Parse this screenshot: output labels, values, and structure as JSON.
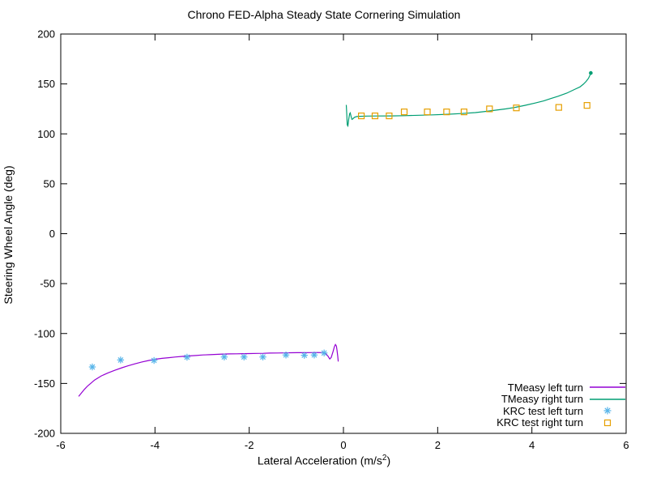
{
  "title": "Chrono FED-Alpha Steady State Cornering Simulation",
  "chart_data": {
    "type": "line",
    "title": "Chrono FED-Alpha Steady State Cornering Simulation",
    "xlabel": {
      "prefix": "Lateral Acceleration (m/s",
      "sup": "2",
      "suffix": ")"
    },
    "ylabel": "Steering Wheel Angle (deg)",
    "xlim": [
      -6,
      6
    ],
    "ylim": [
      -200,
      200
    ],
    "x_ticks": [
      "-6",
      "-4",
      "-2",
      "0",
      "2",
      "4",
      "6"
    ],
    "y_ticks": [
      "-200",
      "-150",
      "-100",
      "-50",
      "0",
      "50",
      "100",
      "150",
      "200"
    ],
    "grid": false,
    "legend_position": "bottom-right-inside",
    "border_color": "#000000",
    "series": [
      {
        "name": "TMeasy left turn",
        "type": "line",
        "color": "#9400d3",
        "points": [
          [
            -5.62,
            -163
          ],
          [
            -5.5,
            -156
          ],
          [
            -5.43,
            -152.5
          ],
          [
            -5.28,
            -146.5
          ],
          [
            -5.14,
            -142.5
          ],
          [
            -5.0,
            -139.5
          ],
          [
            -4.85,
            -136.8
          ],
          [
            -4.7,
            -134.3
          ],
          [
            -4.57,
            -132.3
          ],
          [
            -4.42,
            -130.3
          ],
          [
            -4.28,
            -128.5
          ],
          [
            -4.13,
            -127.0
          ],
          [
            -3.99,
            -125.8
          ],
          [
            -3.85,
            -124.9
          ],
          [
            -3.71,
            -124.2
          ],
          [
            -3.56,
            -123.5
          ],
          [
            -3.42,
            -122.9
          ],
          [
            -3.27,
            -122.4
          ],
          [
            -3.13,
            -122.0
          ],
          [
            -2.98,
            -121.5
          ],
          [
            -2.84,
            -121.2
          ],
          [
            -2.7,
            -120.9
          ],
          [
            -2.56,
            -120.6
          ],
          [
            -2.41,
            -120.4
          ],
          [
            -2.27,
            -120.3
          ],
          [
            -2.13,
            -120.2
          ],
          [
            -1.99,
            -120.1
          ],
          [
            -1.84,
            -119.9
          ],
          [
            -1.7,
            -119.8
          ],
          [
            -1.56,
            -119.6
          ],
          [
            -1.41,
            -119.5
          ],
          [
            -1.27,
            -119.4
          ],
          [
            -1.13,
            -119.3
          ],
          [
            -0.98,
            -119.2
          ],
          [
            -0.84,
            -119.2
          ],
          [
            -0.7,
            -119.1
          ],
          [
            -0.55,
            -119.0
          ],
          [
            -0.45,
            -119.2
          ],
          [
            -0.38,
            -120.0
          ],
          [
            -0.33,
            -122.5
          ],
          [
            -0.29,
            -125.5
          ],
          [
            -0.26,
            -124.0
          ],
          [
            -0.22,
            -118.0
          ],
          [
            -0.19,
            -113.0
          ],
          [
            -0.17,
            -111.0
          ],
          [
            -0.15,
            -112.5
          ],
          [
            -0.135,
            -117.0
          ],
          [
            -0.12,
            -123.0
          ],
          [
            -0.11,
            -128.0
          ]
        ]
      },
      {
        "name": "TMeasy right turn",
        "type": "line",
        "color": "#009e73",
        "endpoint_dot": true,
        "points": [
          [
            0.06,
            129
          ],
          [
            0.07,
            120
          ],
          [
            0.08,
            109
          ],
          [
            0.095,
            108
          ],
          [
            0.11,
            114
          ],
          [
            0.13,
            120
          ],
          [
            0.145,
            121
          ],
          [
            0.16,
            118
          ],
          [
            0.18,
            114.5
          ],
          [
            0.2,
            115
          ],
          [
            0.23,
            116.5
          ],
          [
            0.28,
            117.3
          ],
          [
            0.35,
            117.6
          ],
          [
            0.5,
            117.8
          ],
          [
            0.7,
            117.9
          ],
          [
            1.0,
            118.0
          ],
          [
            1.3,
            118.2
          ],
          [
            1.6,
            118.6
          ],
          [
            1.9,
            119.0
          ],
          [
            2.2,
            119.6
          ],
          [
            2.5,
            120.3
          ],
          [
            2.8,
            121.3
          ],
          [
            3.03,
            122.5
          ],
          [
            3.25,
            123.8
          ],
          [
            3.45,
            125.0
          ],
          [
            3.65,
            126.6
          ],
          [
            3.85,
            128.5
          ],
          [
            4.06,
            130.8
          ],
          [
            4.25,
            133.0
          ],
          [
            4.4,
            135.3
          ],
          [
            4.55,
            137.6
          ],
          [
            4.74,
            140.8
          ],
          [
            4.92,
            144.8
          ],
          [
            5.02,
            147.0
          ],
          [
            5.09,
            149.7
          ],
          [
            5.15,
            152.5
          ],
          [
            5.2,
            155.6
          ],
          [
            5.23,
            158.5
          ],
          [
            5.25,
            161.0
          ]
        ]
      },
      {
        "name": "KRC test left turn",
        "type": "scatter",
        "marker": "asterisk",
        "color": "#56b4e9",
        "points": [
          [
            -5.33,
            -133.5
          ],
          [
            -4.73,
            -126.5
          ],
          [
            -4.02,
            -127.0
          ],
          [
            -3.32,
            -123.7
          ],
          [
            -2.53,
            -123.5
          ],
          [
            -2.11,
            -123.5
          ],
          [
            -1.71,
            -123.5
          ],
          [
            -1.22,
            -121.5
          ],
          [
            -0.83,
            -121.8
          ],
          [
            -0.62,
            -121.5
          ],
          [
            -0.41,
            -119.5
          ]
        ]
      },
      {
        "name": "KRC test right turn",
        "type": "scatter",
        "marker": "square",
        "color": "#e69f00",
        "points": [
          [
            0.38,
            118.0
          ],
          [
            0.67,
            118.0
          ],
          [
            0.97,
            118.0
          ],
          [
            1.29,
            122.0
          ],
          [
            1.78,
            122.0
          ],
          [
            2.19,
            122.0
          ],
          [
            2.56,
            122.0
          ],
          [
            3.1,
            125.0
          ],
          [
            3.67,
            126.0
          ],
          [
            4.57,
            126.5
          ],
          [
            5.17,
            128.5
          ]
        ]
      }
    ]
  }
}
